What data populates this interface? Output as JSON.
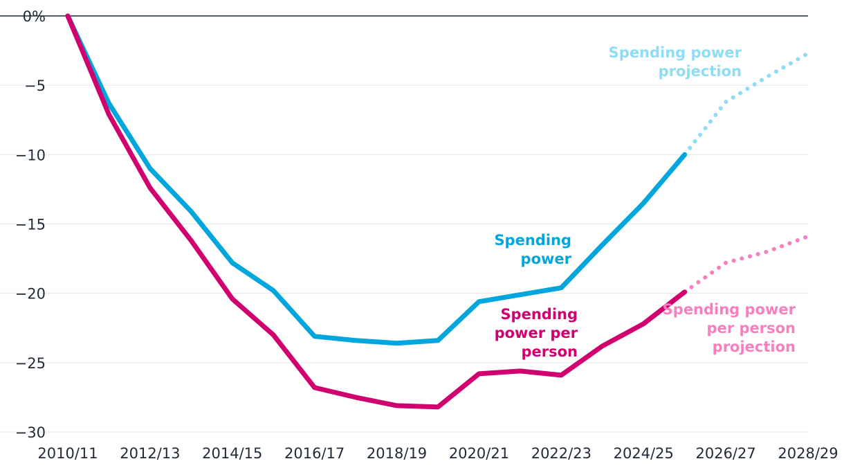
{
  "chart_data": {
    "type": "line",
    "title": "",
    "xlabel": "",
    "ylabel": "",
    "categories": [
      "2010/11",
      "2011/12",
      "2012/13",
      "2013/14",
      "2014/15",
      "2015/16",
      "2016/17",
      "2017/18",
      "2018/19",
      "2019/20",
      "2020/21",
      "2021/22",
      "2022/23",
      "2023/24",
      "2024/25",
      "2025/26",
      "2026/27",
      "2027/28",
      "2028/29"
    ],
    "x_tick_labels": [
      "2010/11",
      "2012/13",
      "2014/15",
      "2016/17",
      "2018/19",
      "2020/21",
      "2022/23",
      "2024/25",
      "2026/27",
      "2028/29"
    ],
    "y_tick_labels": [
      "0%",
      "−5",
      "−10",
      "−15",
      "−20",
      "−25",
      "−30"
    ],
    "y_ticks": [
      0,
      -5,
      -10,
      -15,
      -20,
      -25,
      -30
    ],
    "ylim": [
      -30,
      0
    ],
    "grid": true,
    "series": [
      {
        "name": "Spending power",
        "label_lines": [
          "Spending",
          "power"
        ],
        "color": "#00a6dc",
        "style": "solid",
        "values": [
          0,
          -6.3,
          -11.0,
          -14.1,
          -17.8,
          -19.8,
          -23.1,
          -23.4,
          -23.6,
          -23.4,
          -20.6,
          -20.1,
          -19.6,
          -16.5,
          -13.5,
          -10.0,
          null,
          null,
          null
        ]
      },
      {
        "name": "Spending power per person",
        "label_lines": [
          "Spending",
          "power per",
          "person"
        ],
        "color": "#d1006f",
        "style": "solid",
        "values": [
          0,
          -7.1,
          -12.4,
          -16.2,
          -20.4,
          -23.0,
          -26.8,
          -27.5,
          -28.1,
          -28.2,
          -25.8,
          -25.6,
          -25.9,
          -23.8,
          -22.2,
          -19.9,
          null,
          null,
          null
        ]
      },
      {
        "name": "Spending power projection",
        "label_lines": [
          "Spending power",
          "projection"
        ],
        "color": "#8fdcf5",
        "style": "dotted",
        "values": [
          null,
          null,
          null,
          null,
          null,
          null,
          null,
          null,
          null,
          null,
          null,
          null,
          null,
          null,
          null,
          -10.0,
          -6.2,
          -4.4,
          -2.7
        ]
      },
      {
        "name": "Spending power per person projection",
        "label_lines": [
          "Spending power",
          "per person",
          "projection"
        ],
        "color": "#f77fbf",
        "style": "dotted",
        "values": [
          null,
          null,
          null,
          null,
          null,
          null,
          null,
          null,
          null,
          null,
          null,
          null,
          null,
          null,
          null,
          -19.9,
          -17.8,
          -17.0,
          -15.9
        ]
      }
    ]
  }
}
